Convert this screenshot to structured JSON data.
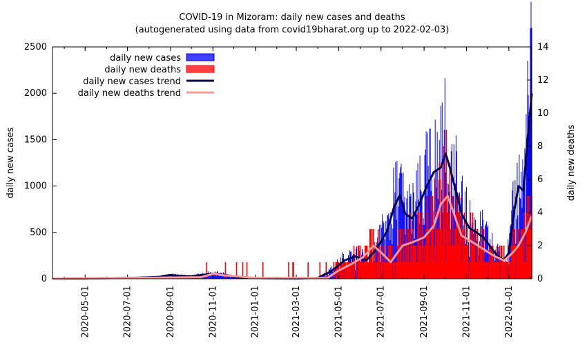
{
  "chart_data": {
    "type": "bar",
    "title": "COVID-19 in Mizoram: daily new cases and deaths",
    "subtitle": "(autogenerated using data from covid19bharat.org up to 2022-02-03)",
    "ylabel": "daily new cases",
    "y2label": "daily new deaths",
    "xlim": [
      "2020-03-15",
      "2022-02-03"
    ],
    "ylim": [
      0,
      2500
    ],
    "y2lim": [
      0,
      14
    ],
    "xticks": [
      "2020-05-01",
      "2020-07-01",
      "2020-09-01",
      "2020-11-01",
      "2021-01-01",
      "2021-03-01",
      "2021-05-01",
      "2021-07-01",
      "2021-09-01",
      "2021-11-01",
      "2022-01-01"
    ],
    "yticks": [
      0,
      500,
      1000,
      1500,
      2000,
      2500
    ],
    "y2ticks": [
      0,
      2,
      4,
      6,
      8,
      10,
      12,
      14
    ],
    "legend_position": "top-left",
    "legend": [
      "daily new cases",
      "daily new deaths",
      "daily new cases trend",
      "daily new deaths trend"
    ],
    "colors": {
      "cases": "#0000ff",
      "deaths": "#ff0000",
      "cases_trend": "#00004d",
      "deaths_trend": "#ff9999"
    },
    "series": [
      {
        "name": "daily new cases trend",
        "axis": "left",
        "points": [
          [
            "2020-03-15",
            0
          ],
          [
            "2020-05-01",
            2
          ],
          [
            "2020-06-15",
            8
          ],
          [
            "2020-07-15",
            12
          ],
          [
            "2020-08-15",
            20
          ],
          [
            "2020-09-01",
            40
          ],
          [
            "2020-09-15",
            30
          ],
          [
            "2020-10-01",
            25
          ],
          [
            "2020-10-15",
            40
          ],
          [
            "2020-11-01",
            55
          ],
          [
            "2020-11-20",
            40
          ],
          [
            "2020-12-10",
            15
          ],
          [
            "2021-01-01",
            8
          ],
          [
            "2021-02-01",
            5
          ],
          [
            "2021-03-01",
            3
          ],
          [
            "2021-04-01",
            10
          ],
          [
            "2021-04-20",
            80
          ],
          [
            "2021-05-10",
            200
          ],
          [
            "2021-05-25",
            240
          ],
          [
            "2021-06-10",
            200
          ],
          [
            "2021-06-20",
            280
          ],
          [
            "2021-07-01",
            400
          ],
          [
            "2021-07-10",
            520
          ],
          [
            "2021-07-20",
            780
          ],
          [
            "2021-07-28",
            900
          ],
          [
            "2021-08-05",
            700
          ],
          [
            "2021-08-15",
            650
          ],
          [
            "2021-08-25",
            800
          ],
          [
            "2021-09-05",
            1000
          ],
          [
            "2021-09-15",
            1150
          ],
          [
            "2021-09-25",
            1200
          ],
          [
            "2021-10-02",
            1350
          ],
          [
            "2021-10-08",
            1200
          ],
          [
            "2021-10-15",
            1000
          ],
          [
            "2021-10-25",
            700
          ],
          [
            "2021-11-05",
            550
          ],
          [
            "2021-11-15",
            500
          ],
          [
            "2021-11-25",
            450
          ],
          [
            "2021-12-05",
            350
          ],
          [
            "2021-12-15",
            250
          ],
          [
            "2021-12-25",
            200
          ],
          [
            "2022-01-01",
            280
          ],
          [
            "2022-01-08",
            700
          ],
          [
            "2022-01-15",
            1000
          ],
          [
            "2022-01-22",
            950
          ],
          [
            "2022-01-28",
            1500
          ],
          [
            "2022-02-03",
            2000
          ]
        ]
      },
      {
        "name": "daily new deaths trend",
        "axis": "right",
        "points": [
          [
            "2020-03-15",
            0
          ],
          [
            "2020-10-15",
            0.1
          ],
          [
            "2020-11-01",
            0.3
          ],
          [
            "2020-11-20",
            0.2
          ],
          [
            "2021-01-01",
            0.05
          ],
          [
            "2021-04-15",
            0.05
          ],
          [
            "2021-05-01",
            0.5
          ],
          [
            "2021-05-20",
            0.9
          ],
          [
            "2021-06-05",
            1.3
          ],
          [
            "2021-06-20",
            2.0
          ],
          [
            "2021-07-01",
            1.6
          ],
          [
            "2021-07-15",
            1.0
          ],
          [
            "2021-08-01",
            2.0
          ],
          [
            "2021-08-15",
            2.2
          ],
          [
            "2021-09-01",
            2.5
          ],
          [
            "2021-09-15",
            3.2
          ],
          [
            "2021-09-25",
            4.5
          ],
          [
            "2021-10-05",
            5.0
          ],
          [
            "2021-10-15",
            3.8
          ],
          [
            "2021-10-25",
            2.6
          ],
          [
            "2021-11-10",
            2.2
          ],
          [
            "2021-11-25",
            1.8
          ],
          [
            "2021-12-10",
            1.4
          ],
          [
            "2021-12-25",
            1.1
          ],
          [
            "2022-01-05",
            1.5
          ],
          [
            "2022-01-15",
            2.0
          ],
          [
            "2022-01-25",
            2.8
          ],
          [
            "2022-02-03",
            3.8
          ]
        ]
      }
    ]
  }
}
